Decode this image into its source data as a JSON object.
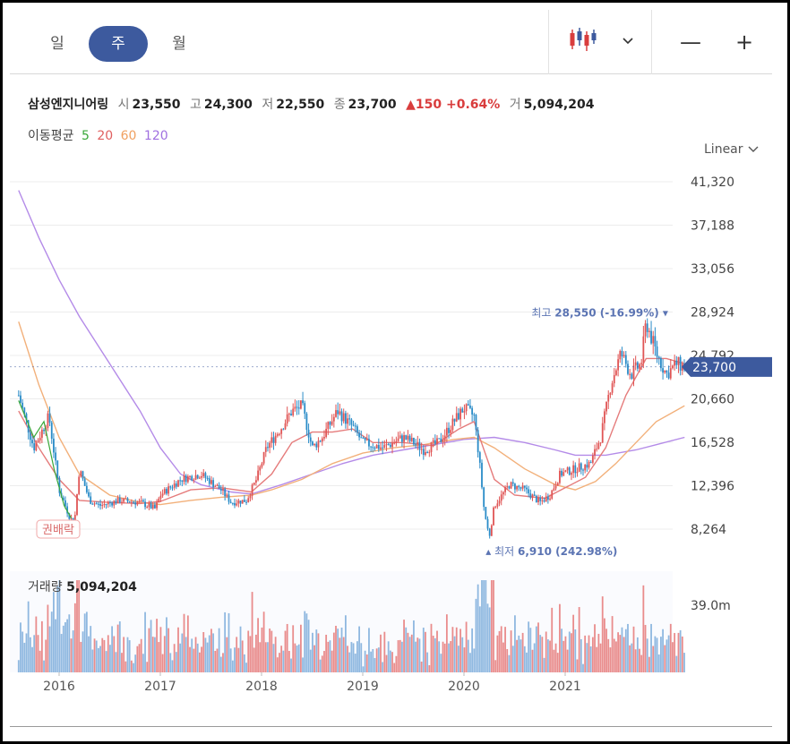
{
  "period_tabs": [
    "일",
    "주",
    "월"
  ],
  "active_tab": "주",
  "toolbar": {
    "chart_type_icon": "candlestick-icon",
    "dropdown_icon": "chevron-down-icon",
    "zoom_out_label": "—",
    "zoom_in_label": "+"
  },
  "stock": {
    "name": "삼성엔지니어링",
    "open_label": "시",
    "open": "23,550",
    "high_label": "고",
    "high": "24,300",
    "low_label": "저",
    "low": "22,550",
    "close_label": "종",
    "close": "23,700",
    "change": "▲150 +0.64%",
    "volume_label": "거",
    "volume": "5,094,204"
  },
  "moving_average": {
    "label": "이동평균",
    "periods": [
      "5",
      "20",
      "60",
      "120"
    ],
    "colors": [
      "#3aa83a",
      "#e06060",
      "#f0a060",
      "#a070e0"
    ]
  },
  "scale": "Linear",
  "chart_data": {
    "type": "candlestick",
    "yticks": [
      41320,
      37188,
      33056,
      28924,
      24792,
      20660,
      16528,
      12396,
      8264
    ],
    "ytick_labels": [
      "41,320",
      "37,188",
      "33,056",
      "28,924",
      "24,792",
      "20,660",
      "16,528",
      "12,396",
      "8,264"
    ],
    "xtick_labels": [
      "2016",
      "2017",
      "2018",
      "2019",
      "2020",
      "2021"
    ],
    "current_price": 23700,
    "current_price_label": "23,700",
    "high_marker": {
      "label": "최고",
      "value": "28,550 (-16.99%)"
    },
    "low_marker": {
      "label": "최저",
      "value": "6,910 (242.98%)"
    },
    "event_label": "권배락",
    "colors": {
      "up": "#e05555",
      "down": "#2a8cc8",
      "accent": "#3d5a9e"
    },
    "price_path": [
      [
        2015.6,
        21000
      ],
      [
        2015.75,
        16000
      ],
      [
        2015.9,
        19000
      ],
      [
        2016.0,
        12000
      ],
      [
        2016.1,
        9500
      ],
      [
        2016.15,
        8800
      ],
      [
        2016.2,
        14000
      ],
      [
        2016.3,
        11000
      ],
      [
        2016.4,
        10500
      ],
      [
        2016.6,
        11000
      ],
      [
        2016.8,
        10800
      ],
      [
        2016.95,
        10200
      ],
      [
        2017.0,
        11500
      ],
      [
        2017.2,
        13000
      ],
      [
        2017.4,
        13500
      ],
      [
        2017.6,
        12000
      ],
      [
        2017.7,
        10800
      ],
      [
        2017.85,
        11000
      ],
      [
        2017.95,
        13000
      ],
      [
        2018.05,
        16000
      ],
      [
        2018.2,
        18000
      ],
      [
        2018.3,
        19500
      ],
      [
        2018.4,
        20000
      ],
      [
        2018.5,
        16000
      ],
      [
        2018.6,
        17000
      ],
      [
        2018.75,
        19500
      ],
      [
        2018.9,
        18000
      ],
      [
        2019.0,
        16500
      ],
      [
        2019.2,
        16000
      ],
      [
        2019.4,
        17000
      ],
      [
        2019.5,
        16500
      ],
      [
        2019.6,
        15800
      ],
      [
        2019.75,
        16500
      ],
      [
        2019.9,
        18500
      ],
      [
        2020.0,
        19800
      ],
      [
        2020.1,
        19000
      ],
      [
        2020.15,
        15000
      ],
      [
        2020.2,
        10000
      ],
      [
        2020.25,
        7500
      ],
      [
        2020.3,
        10500
      ],
      [
        2020.45,
        12500
      ],
      [
        2020.6,
        12000
      ],
      [
        2020.75,
        10800
      ],
      [
        2020.85,
        11500
      ],
      [
        2020.95,
        13500
      ],
      [
        2021.1,
        14000
      ],
      [
        2021.25,
        14500
      ],
      [
        2021.35,
        17000
      ],
      [
        2021.45,
        22000
      ],
      [
        2021.55,
        25000
      ],
      [
        2021.65,
        23000
      ],
      [
        2021.75,
        24000
      ],
      [
        2021.8,
        28000
      ],
      [
        2021.9,
        25000
      ],
      [
        2022.0,
        23000
      ],
      [
        2022.1,
        24000
      ],
      [
        2022.18,
        23700
      ]
    ],
    "ma20": [
      [
        2015.6,
        19500
      ],
      [
        2015.8,
        16000
      ],
      [
        2016.0,
        13000
      ],
      [
        2016.2,
        11000
      ],
      [
        2016.5,
        10800
      ],
      [
        2016.8,
        10700
      ],
      [
        2017.0,
        10900
      ],
      [
        2017.3,
        12000
      ],
      [
        2017.6,
        12200
      ],
      [
        2017.9,
        11800
      ],
      [
        2018.1,
        13500
      ],
      [
        2018.3,
        16500
      ],
      [
        2018.5,
        17500
      ],
      [
        2018.7,
        17500
      ],
      [
        2018.9,
        17800
      ],
      [
        2019.1,
        16500
      ],
      [
        2019.4,
        16500
      ],
      [
        2019.7,
        16200
      ],
      [
        2019.95,
        17800
      ],
      [
        2020.1,
        18500
      ],
      [
        2020.3,
        13000
      ],
      [
        2020.5,
        11500
      ],
      [
        2020.8,
        11200
      ],
      [
        2021.0,
        12200
      ],
      [
        2021.2,
        13200
      ],
      [
        2021.4,
        16000
      ],
      [
        2021.6,
        21000
      ],
      [
        2021.8,
        24500
      ],
      [
        2022.0,
        24500
      ],
      [
        2022.18,
        24000
      ]
    ],
    "ma60": [
      [
        2015.6,
        28000
      ],
      [
        2015.8,
        22000
      ],
      [
        2016.0,
        17000
      ],
      [
        2016.2,
        13500
      ],
      [
        2016.5,
        11500
      ],
      [
        2016.8,
        10800
      ],
      [
        2017.0,
        10600
      ],
      [
        2017.3,
        11000
      ],
      [
        2017.6,
        11300
      ],
      [
        2017.9,
        11500
      ],
      [
        2018.1,
        12000
      ],
      [
        2018.4,
        13000
      ],
      [
        2018.7,
        14500
      ],
      [
        2019.0,
        15500
      ],
      [
        2019.3,
        16000
      ],
      [
        2019.6,
        16300
      ],
      [
        2019.9,
        16800
      ],
      [
        2020.1,
        17000
      ],
      [
        2020.3,
        16000
      ],
      [
        2020.6,
        14000
      ],
      [
        2020.9,
        12500
      ],
      [
        2021.1,
        12000
      ],
      [
        2021.3,
        12800
      ],
      [
        2021.5,
        14500
      ],
      [
        2021.7,
        16500
      ],
      [
        2021.9,
        18500
      ],
      [
        2022.18,
        20000
      ]
    ],
    "ma120": [
      [
        2015.6,
        40500
      ],
      [
        2015.8,
        36000
      ],
      [
        2016.0,
        32000
      ],
      [
        2016.2,
        28500
      ],
      [
        2016.5,
        24000
      ],
      [
        2016.8,
        19500
      ],
      [
        2017.0,
        16000
      ],
      [
        2017.2,
        13500
      ],
      [
        2017.4,
        12500
      ],
      [
        2017.7,
        11800
      ],
      [
        2017.9,
        11600
      ],
      [
        2018.2,
        12500
      ],
      [
        2018.5,
        13500
      ],
      [
        2018.8,
        14500
      ],
      [
        2019.1,
        15300
      ],
      [
        2019.4,
        15800
      ],
      [
        2019.7,
        16300
      ],
      [
        2020.0,
        16800
      ],
      [
        2020.3,
        17000
      ],
      [
        2020.6,
        16500
      ],
      [
        2020.9,
        15800
      ],
      [
        2021.1,
        15300
      ],
      [
        2021.4,
        15300
      ],
      [
        2021.7,
        15800
      ],
      [
        2021.9,
        16300
      ],
      [
        2022.18,
        17000
      ]
    ]
  },
  "volume": {
    "label": "거래량",
    "value": "5,094,204",
    "axis_label": "39.0m",
    "axis_max": 39000000
  }
}
